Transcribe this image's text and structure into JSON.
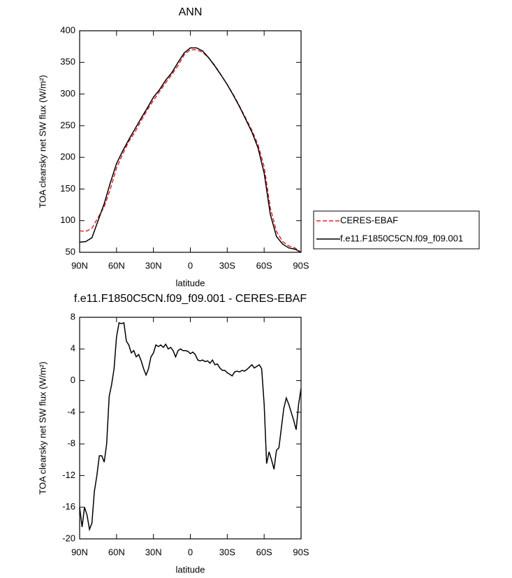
{
  "chart_data": [
    {
      "type": "line",
      "title": "ANN",
      "x_label": "latitude",
      "y_label": "TOA clearsky net SW flux (W/m²)",
      "x": [
        90,
        85,
        80,
        75,
        70,
        65,
        60,
        55,
        50,
        45,
        40,
        35,
        30,
        25,
        20,
        15,
        10,
        5,
        0,
        -5,
        -10,
        -15,
        -20,
        -25,
        -30,
        -35,
        -40,
        -45,
        -50,
        -55,
        -60,
        -65,
        -70,
        -75,
        -80,
        -85,
        -90
      ],
      "series": [
        {
          "name": "CERES-EBAF",
          "color": "#e8202a",
          "linestyle": "dashed",
          "values": [
            84,
            83,
            88,
            105,
            122,
            150,
            183,
            205,
            225,
            240,
            258,
            275,
            290,
            304,
            318,
            331,
            345,
            362,
            370,
            370,
            366,
            357,
            345,
            330,
            315,
            299,
            281,
            262,
            243,
            220,
            185,
            120,
            83,
            67,
            60,
            57,
            50
          ]
        },
        {
          "name": "f.e11.F1850C5CN.f09_f09.001",
          "color": "#000000",
          "linestyle": "solid",
          "values": [
            66,
            67,
            73,
            100,
            127,
            160,
            190,
            210,
            228,
            245,
            262,
            278,
            295,
            307,
            322,
            334,
            350,
            365,
            373,
            373,
            368,
            357,
            344,
            330,
            315,
            298,
            280,
            260,
            240,
            215,
            175,
            110,
            75,
            63,
            57,
            55,
            50
          ]
        }
      ],
      "xlim": [
        90,
        -90
      ],
      "xticks": [
        {
          "value": 90,
          "label": "90N"
        },
        {
          "value": 60,
          "label": "60N"
        },
        {
          "value": 30,
          "label": "30N"
        },
        0,
        {
          "value": -30,
          "label": "30S"
        },
        {
          "value": -60,
          "label": "60S"
        },
        {
          "value": -90,
          "label": "90S"
        }
      ],
      "ylim": [
        50,
        400
      ],
      "yticks": [
        50,
        100,
        150,
        200,
        250,
        300,
        350,
        400
      ],
      "legend": "right"
    },
    {
      "type": "line",
      "title": "f.e11.F1850C5CN.f09_f09.001 - CERES-EBAF",
      "x_label": "latitude",
      "y_label": "TOA clearsky net SW flux (W/m²)",
      "x": [
        90,
        88,
        86,
        84,
        82,
        80,
        78,
        76,
        74,
        72,
        70,
        68,
        66,
        64,
        62,
        60,
        58,
        56,
        54,
        52,
        50,
        48,
        46,
        44,
        42,
        40,
        38,
        36,
        34,
        32,
        30,
        28,
        26,
        24,
        22,
        20,
        18,
        16,
        14,
        12,
        10,
        8,
        6,
        4,
        2,
        0,
        -2,
        -4,
        -6,
        -8,
        -10,
        -12,
        -14,
        -16,
        -18,
        -20,
        -22,
        -24,
        -26,
        -28,
        -30,
        -32,
        -34,
        -36,
        -38,
        -40,
        -42,
        -44,
        -46,
        -48,
        -50,
        -52,
        -54,
        -56,
        -58,
        -60,
        -62,
        -64,
        -66,
        -68,
        -70,
        -72,
        -74,
        -76,
        -78,
        -80,
        -82,
        -84,
        -86,
        -88,
        -90
      ],
      "series": [
        {
          "name": null,
          "color": "#000000",
          "linestyle": "solid",
          "values": [
            -16,
            -18.5,
            -16,
            -17,
            -18.8,
            -18,
            -14,
            -12,
            -9.5,
            -9.5,
            -10.3,
            -8,
            -2,
            -0.5,
            1.5,
            5.5,
            7.3,
            7.2,
            7.3,
            5,
            4.5,
            3.5,
            3.8,
            3,
            3.3,
            2.5,
            1.5,
            0.7,
            1.5,
            3,
            3.5,
            4.5,
            4.3,
            4.5,
            4.2,
            4.6,
            4,
            4.2,
            3.8,
            3,
            3.8,
            4,
            3.8,
            3.8,
            3.7,
            3.4,
            3.6,
            3.3,
            2.6,
            2.5,
            2.6,
            2.4,
            2.5,
            2.2,
            2.6,
            2.0,
            2.1,
            1.6,
            1.3,
            1.3,
            1.0,
            0.8,
            0.6,
            1.1,
            1.2,
            1.1,
            1.3,
            1.2,
            1.4,
            1.7,
            2.0,
            1.6,
            1.8,
            2.0,
            1.5,
            -3,
            -10.5,
            -9,
            -10,
            -11.2,
            -8.8,
            -8.5,
            -6,
            -3.5,
            -2.2,
            -3,
            -4,
            -5,
            -6.2,
            -3,
            -1
          ]
        }
      ],
      "xlim": [
        90,
        -90
      ],
      "xticks": [
        {
          "value": 90,
          "label": "90N"
        },
        {
          "value": 60,
          "label": "60N"
        },
        {
          "value": 30,
          "label": "30N"
        },
        0,
        {
          "value": -30,
          "label": "30S"
        },
        {
          "value": -60,
          "label": "60S"
        },
        {
          "value": -90,
          "label": "90S"
        }
      ],
      "ylim": [
        -20,
        8
      ],
      "yticks": [
        -20,
        -16,
        -12,
        -8,
        -4,
        0,
        4,
        8
      ]
    }
  ]
}
